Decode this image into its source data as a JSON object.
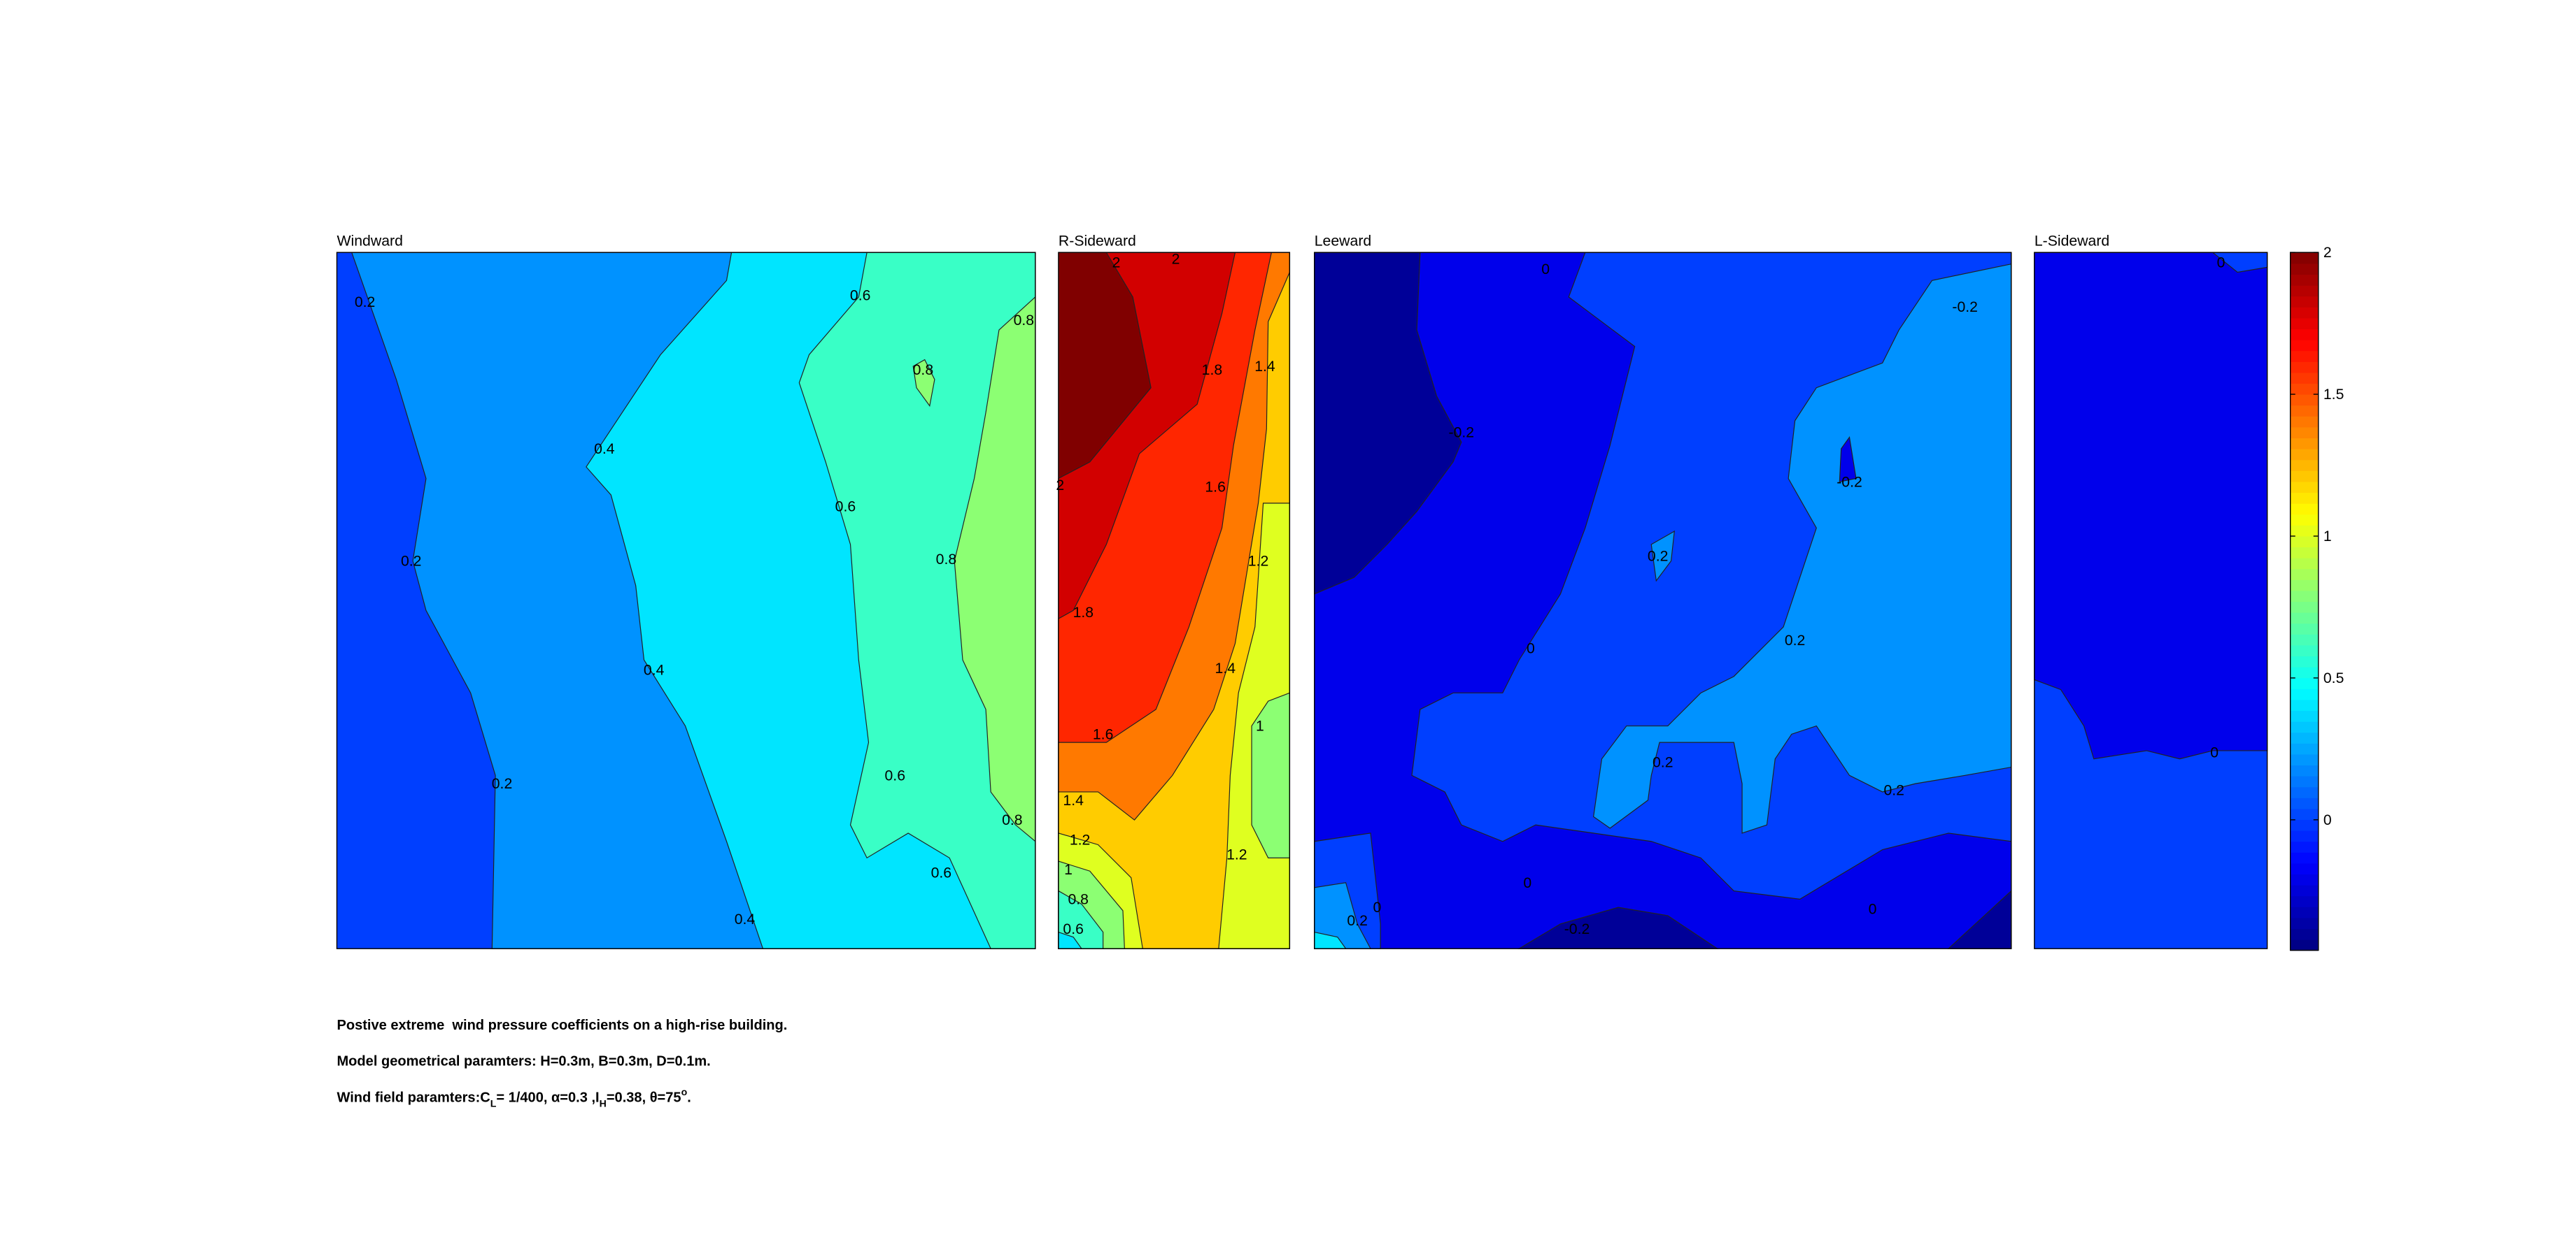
{
  "chart_data": [
    {
      "type": "contour",
      "title": "Windward",
      "regions": [
        0,
        0.2,
        0.4,
        0.6,
        0.8,
        0.8
      ],
      "contour_labels": [
        0.2,
        0.4,
        0.6,
        0.8,
        0.8,
        0.2,
        0.6,
        0.8,
        0.4,
        0.2,
        0.6,
        0.8,
        0.6,
        0.4
      ]
    },
    {
      "type": "contour",
      "title": "R-Sideward",
      "regions": [
        2,
        1.8,
        1.6,
        1.4,
        1.2,
        1,
        1,
        0.8,
        0.8,
        0.6,
        0.4
      ],
      "contour_labels": [
        2,
        2,
        1.8,
        1.4,
        2,
        1.6,
        1.2,
        1.8,
        1.4,
        1.6,
        1,
        1.4,
        1.2,
        1.2,
        1,
        0.8,
        0.6
      ]
    },
    {
      "type": "contour",
      "title": "Leeward",
      "regions": [
        -0.2,
        -0.4,
        -0.4,
        -0.4,
        0,
        0,
        0.2,
        -0.2,
        0.2,
        0.2,
        0.4
      ],
      "contour_labels": [
        0,
        -0.2,
        -0.2,
        -0.2,
        0.2,
        0,
        0.2,
        0.2,
        0.2,
        0,
        0,
        0.2,
        0,
        -0.2
      ]
    },
    {
      "type": "contour",
      "title": "L-Sideward",
      "regions": [
        0,
        -0.2,
        0
      ],
      "contour_labels": [
        0,
        0
      ]
    },
    {
      "type": "colorbar",
      "clim": [
        -0.46,
        2
      ],
      "ticks": [
        0,
        0.5,
        1,
        1.5,
        2
      ]
    }
  ],
  "caption": [
    "Postive extreme  wind pressure coefficients on a high-rise building.",
    "Model geometrical paramters: H=0.3m, B=0.3m, D=0.1m.",
    [
      "Wind field paramters:C",
      "L",
      "= 1/400, α=0.3 ,I",
      "H",
      "=0.38, θ=75",
      "o",
      "."
    ]
  ]
}
